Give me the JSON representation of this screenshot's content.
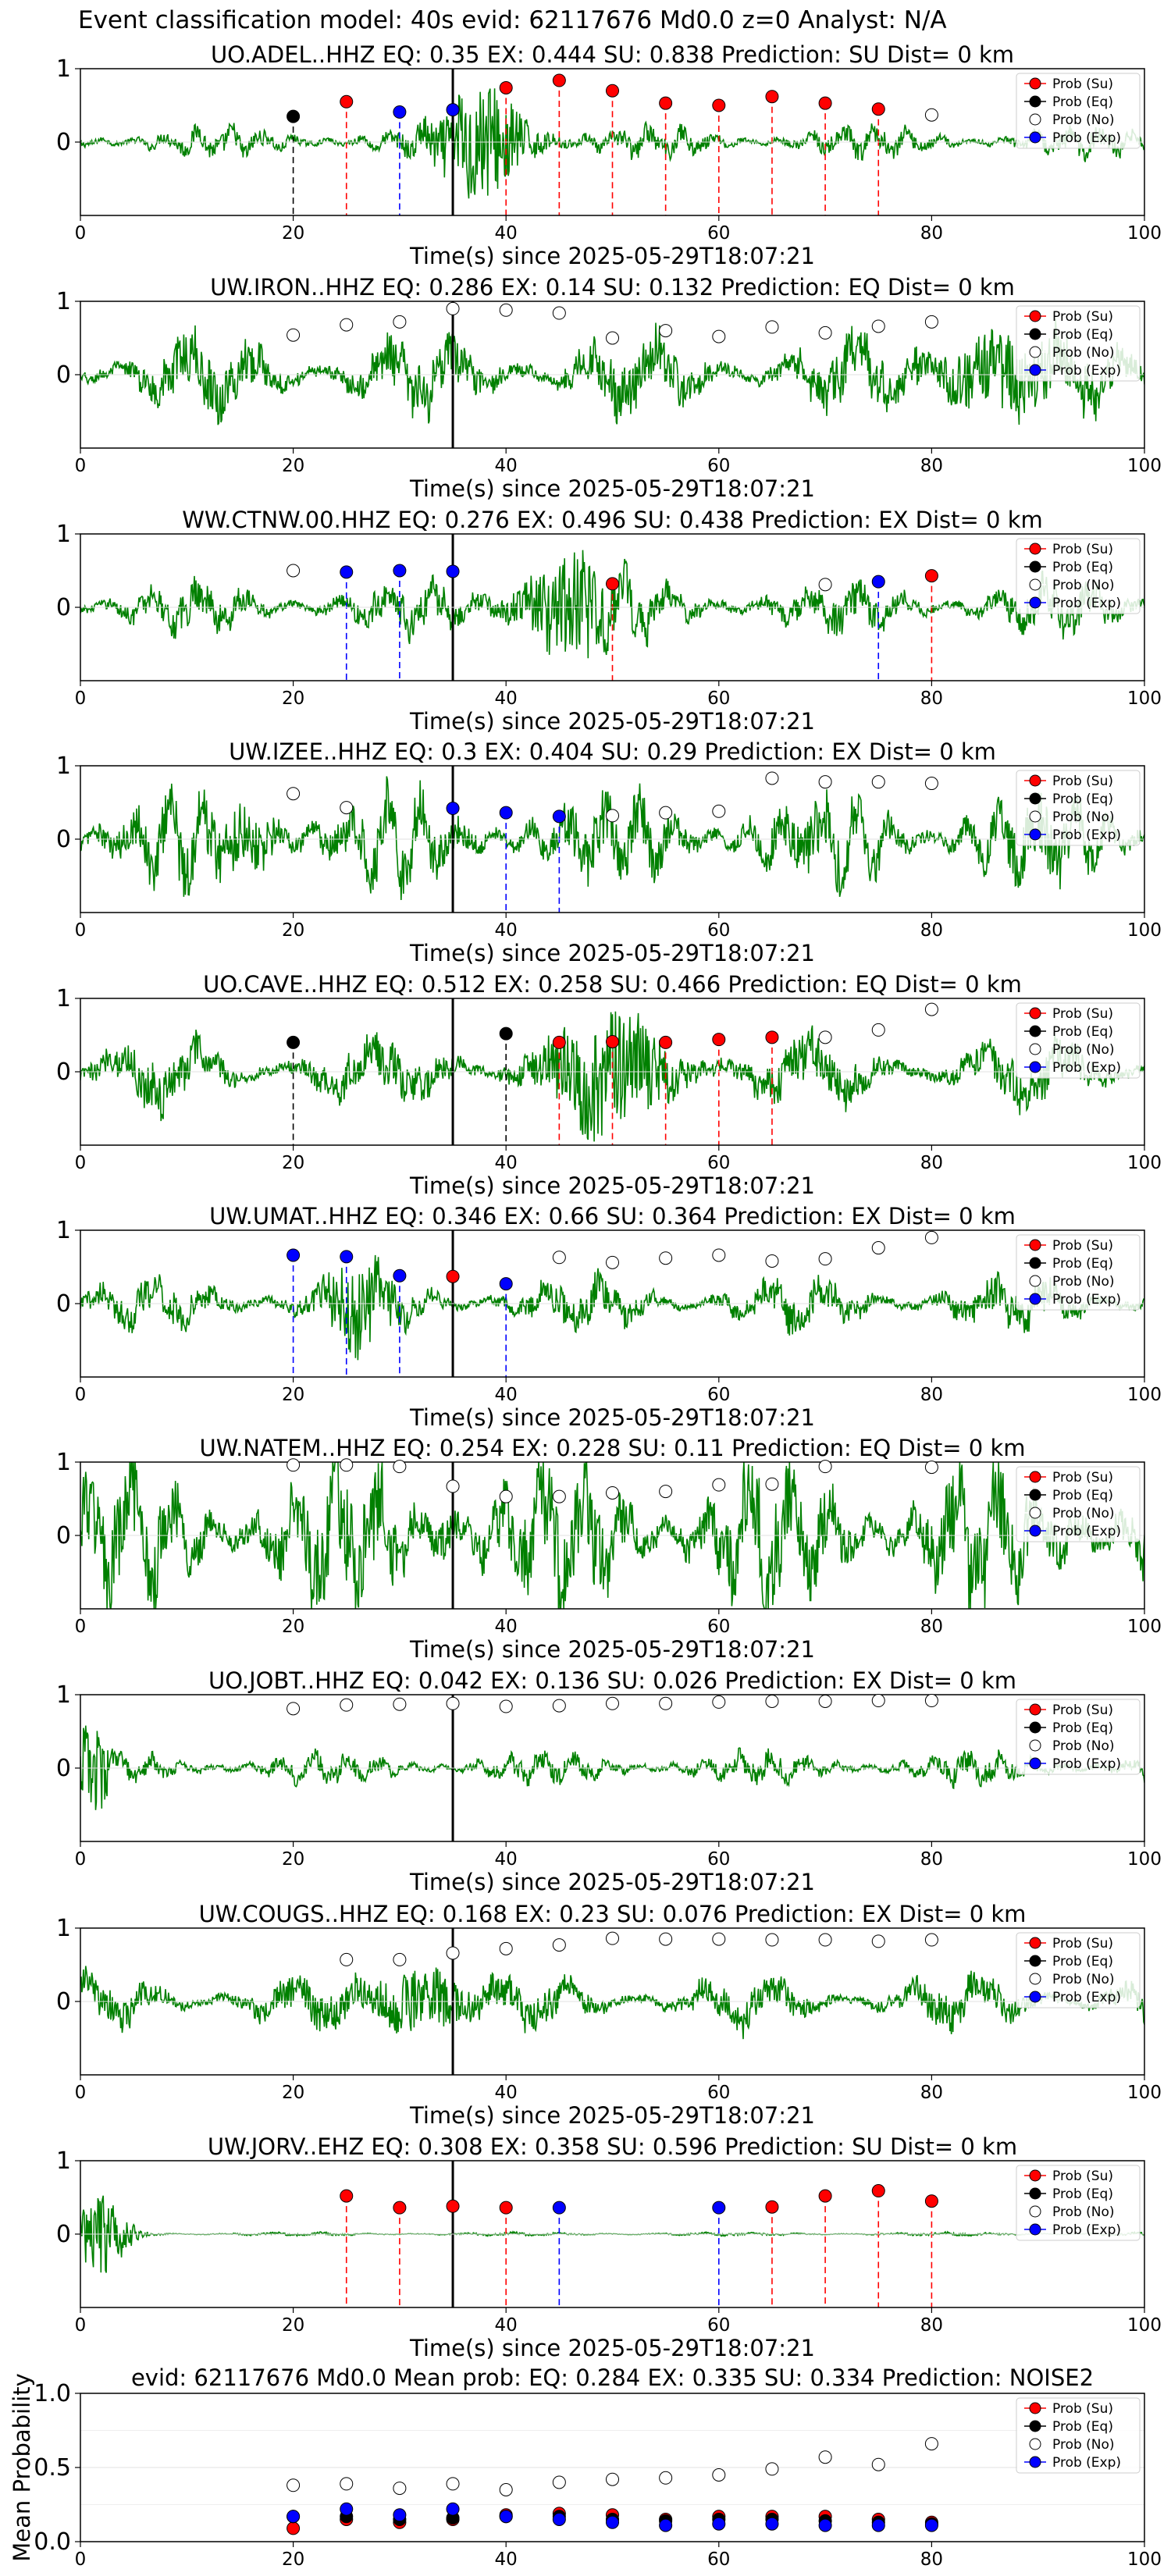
{
  "header": {
    "suptitle": "Event classification model: 40s evid: 62117676 Md0.0 z=0 Analyst: N/A"
  },
  "legend": [
    "Prob (Su)",
    "Prob (Eq)",
    "Prob (No)",
    "Prob (Exp)"
  ],
  "colors": {
    "waveform": "#008000",
    "su": "#ff0000",
    "eq": "#000000",
    "no": "#ffffff",
    "exp": "#0000ff",
    "reference_line": "#000000"
  },
  "chart_data": [
    {
      "type": "line",
      "title": "UO.ADEL..HHZ   EQ: 0.35  EX: 0.444  SU: 0.838   Prediction: SU    Dist= 0 km",
      "xlabel": "Time(s) since 2025-05-29T18:07:21",
      "xlim": [
        0,
        100
      ],
      "ylim": [
        -1,
        1
      ],
      "xticks": [
        0,
        20,
        40,
        60,
        80,
        100
      ],
      "yticks": [
        0,
        1
      ],
      "wave": {
        "amp": 0.18,
        "burst_center": 38,
        "burst_width": 4,
        "burst_amp": 0.9
      },
      "reference_x": 35,
      "points": [
        {
          "x": 20,
          "y": 0.35,
          "cls": "eq"
        },
        {
          "x": 25,
          "y": 0.55,
          "cls": "su"
        },
        {
          "x": 30,
          "y": 0.41,
          "cls": "exp"
        },
        {
          "x": 35,
          "y": 0.44,
          "cls": "exp"
        },
        {
          "x": 40,
          "y": 0.74,
          "cls": "su"
        },
        {
          "x": 45,
          "y": 0.84,
          "cls": "su"
        },
        {
          "x": 50,
          "y": 0.7,
          "cls": "su"
        },
        {
          "x": 55,
          "y": 0.53,
          "cls": "su"
        },
        {
          "x": 60,
          "y": 0.5,
          "cls": "su"
        },
        {
          "x": 65,
          "y": 0.62,
          "cls": "su"
        },
        {
          "x": 70,
          "y": 0.53,
          "cls": "su"
        },
        {
          "x": 75,
          "y": 0.45,
          "cls": "su"
        },
        {
          "x": 80,
          "y": 0.37,
          "cls": "no"
        }
      ]
    },
    {
      "type": "line",
      "title": "UW.IRON..HHZ   EQ: 0.286  EX: 0.14  SU: 0.132   Prediction: EQ    Dist= 0 km",
      "xlabel": "Time(s) since 2025-05-29T18:07:21",
      "xlim": [
        0,
        100
      ],
      "ylim": [
        -1,
        1
      ],
      "xticks": [
        0,
        20,
        40,
        60,
        80,
        100
      ],
      "yticks": [
        0,
        1
      ],
      "wave": {
        "amp": 0.45,
        "burst_center": 85,
        "burst_width": 5,
        "burst_amp": 0.5
      },
      "reference_x": 35,
      "points": [
        {
          "x": 20,
          "y": 0.54,
          "cls": "no"
        },
        {
          "x": 25,
          "y": 0.68,
          "cls": "no"
        },
        {
          "x": 30,
          "y": 0.72,
          "cls": "no"
        },
        {
          "x": 35,
          "y": 0.9,
          "cls": "no"
        },
        {
          "x": 40,
          "y": 0.88,
          "cls": "no"
        },
        {
          "x": 45,
          "y": 0.84,
          "cls": "no"
        },
        {
          "x": 50,
          "y": 0.5,
          "cls": "no"
        },
        {
          "x": 55,
          "y": 0.6,
          "cls": "no"
        },
        {
          "x": 60,
          "y": 0.52,
          "cls": "no"
        },
        {
          "x": 65,
          "y": 0.65,
          "cls": "no"
        },
        {
          "x": 70,
          "y": 0.57,
          "cls": "no"
        },
        {
          "x": 75,
          "y": 0.66,
          "cls": "no"
        },
        {
          "x": 80,
          "y": 0.72,
          "cls": "no"
        }
      ]
    },
    {
      "type": "line",
      "title": "WW.CTNW.00.HHZ   EQ: 0.276  EX: 0.496  SU: 0.438   Prediction: EX    Dist= 0 km",
      "xlabel": "Time(s) since 2025-05-29T18:07:21",
      "xlim": [
        0,
        100
      ],
      "ylim": [
        -1,
        1
      ],
      "xticks": [
        0,
        20,
        40,
        60,
        80,
        100
      ],
      "yticks": [
        0,
        1
      ],
      "wave": {
        "amp": 0.3,
        "burst_center": 46,
        "burst_width": 5,
        "burst_amp": 0.7
      },
      "reference_x": 35,
      "points": [
        {
          "x": 20,
          "y": 0.5,
          "cls": "no"
        },
        {
          "x": 25,
          "y": 0.48,
          "cls": "exp"
        },
        {
          "x": 30,
          "y": 0.5,
          "cls": "exp"
        },
        {
          "x": 35,
          "y": 0.49,
          "cls": "exp"
        },
        {
          "x": 50,
          "y": 0.32,
          "cls": "su"
        },
        {
          "x": 70,
          "y": 0.31,
          "cls": "no"
        },
        {
          "x": 75,
          "y": 0.35,
          "cls": "exp"
        },
        {
          "x": 80,
          "y": 0.43,
          "cls": "su"
        }
      ]
    },
    {
      "type": "line",
      "title": "UW.IZEE..HHZ   EQ: 0.3  EX: 0.404  SU: 0.29   Prediction: EX    Dist= 0 km",
      "xlabel": "Time(s) since 2025-05-29T18:07:21",
      "xlim": [
        0,
        100
      ],
      "ylim": [
        -1,
        1
      ],
      "xticks": [
        0,
        20,
        40,
        60,
        80,
        100
      ],
      "yticks": [
        0,
        1
      ],
      "wave": {
        "amp": 0.55,
        "burst_center": 16,
        "burst_width": 3,
        "burst_amp": 0.3
      },
      "reference_x": 35,
      "points": [
        {
          "x": 20,
          "y": 0.62,
          "cls": "no"
        },
        {
          "x": 25,
          "y": 0.43,
          "cls": "no"
        },
        {
          "x": 35,
          "y": 0.42,
          "cls": "exp"
        },
        {
          "x": 40,
          "y": 0.36,
          "cls": "exp"
        },
        {
          "x": 45,
          "y": 0.31,
          "cls": "exp"
        },
        {
          "x": 50,
          "y": 0.32,
          "cls": "no"
        },
        {
          "x": 55,
          "y": 0.36,
          "cls": "no"
        },
        {
          "x": 60,
          "y": 0.38,
          "cls": "no"
        },
        {
          "x": 65,
          "y": 0.83,
          "cls": "no"
        },
        {
          "x": 70,
          "y": 0.78,
          "cls": "no"
        },
        {
          "x": 75,
          "y": 0.78,
          "cls": "no"
        },
        {
          "x": 80,
          "y": 0.76,
          "cls": "no"
        }
      ]
    },
    {
      "type": "line",
      "title": "UO.CAVE..HHZ   EQ: 0.512  EX: 0.258  SU: 0.466   Prediction: EQ    Dist= 0 km",
      "xlabel": "Time(s) since 2025-05-29T18:07:21",
      "xlim": [
        0,
        100
      ],
      "ylim": [
        -1,
        1
      ],
      "xticks": [
        0,
        20,
        40,
        60,
        80,
        100
      ],
      "yticks": [
        0,
        1
      ],
      "wave": {
        "amp": 0.4,
        "burst_center": 50,
        "burst_width": 6,
        "burst_amp": 0.6
      },
      "reference_x": 35,
      "points": [
        {
          "x": 20,
          "y": 0.4,
          "cls": "eq"
        },
        {
          "x": 40,
          "y": 0.52,
          "cls": "eq"
        },
        {
          "x": 45,
          "y": 0.4,
          "cls": "su"
        },
        {
          "x": 50,
          "y": 0.41,
          "cls": "su"
        },
        {
          "x": 55,
          "y": 0.4,
          "cls": "su"
        },
        {
          "x": 60,
          "y": 0.44,
          "cls": "su"
        },
        {
          "x": 65,
          "y": 0.47,
          "cls": "su"
        },
        {
          "x": 70,
          "y": 0.47,
          "cls": "no"
        },
        {
          "x": 75,
          "y": 0.57,
          "cls": "no"
        },
        {
          "x": 80,
          "y": 0.85,
          "cls": "no"
        }
      ]
    },
    {
      "type": "line",
      "title": "UW.UMAT..HHZ   EQ: 0.346  EX: 0.66  SU: 0.364   Prediction: EX    Dist= 0 km",
      "xlabel": "Time(s) since 2025-05-29T18:07:21",
      "xlim": [
        0,
        100
      ],
      "ylim": [
        -1,
        1
      ],
      "xticks": [
        0,
        20,
        40,
        60,
        80,
        100
      ],
      "yticks": [
        0,
        1
      ],
      "wave": {
        "amp": 0.3,
        "burst_center": 26,
        "burst_width": 2.5,
        "burst_amp": 0.6
      },
      "reference_x": 35,
      "points": [
        {
          "x": 20,
          "y": 0.66,
          "cls": "exp"
        },
        {
          "x": 25,
          "y": 0.64,
          "cls": "exp"
        },
        {
          "x": 30,
          "y": 0.38,
          "cls": "exp"
        },
        {
          "x": 35,
          "y": 0.37,
          "cls": "su"
        },
        {
          "x": 40,
          "y": 0.27,
          "cls": "exp"
        },
        {
          "x": 45,
          "y": 0.63,
          "cls": "no"
        },
        {
          "x": 50,
          "y": 0.56,
          "cls": "no"
        },
        {
          "x": 55,
          "y": 0.62,
          "cls": "no"
        },
        {
          "x": 60,
          "y": 0.66,
          "cls": "no"
        },
        {
          "x": 65,
          "y": 0.58,
          "cls": "no"
        },
        {
          "x": 70,
          "y": 0.61,
          "cls": "no"
        },
        {
          "x": 75,
          "y": 0.76,
          "cls": "no"
        },
        {
          "x": 80,
          "y": 0.9,
          "cls": "no"
        }
      ]
    },
    {
      "type": "line",
      "title": "UW.NATEM..HHZ   EQ: 0.254  EX: 0.228  SU: 0.11   Prediction: EQ    Dist= 0 km",
      "xlabel": "Time(s) since 2025-05-29T18:07:21",
      "xlim": [
        0,
        100
      ],
      "ylim": [
        -1,
        1
      ],
      "xticks": [
        0,
        20,
        40,
        60,
        80,
        100
      ],
      "yticks": [
        0,
        1
      ],
      "wave": {
        "amp": 0.85,
        "burst_center": 35,
        "burst_width": 2,
        "burst_amp": 0.2
      },
      "reference_x": 35,
      "points": [
        {
          "x": 20,
          "y": 0.96,
          "cls": "no"
        },
        {
          "x": 25,
          "y": 0.96,
          "cls": "no"
        },
        {
          "x": 30,
          "y": 0.94,
          "cls": "no"
        },
        {
          "x": 35,
          "y": 0.67,
          "cls": "no"
        },
        {
          "x": 40,
          "y": 0.53,
          "cls": "no"
        },
        {
          "x": 45,
          "y": 0.53,
          "cls": "no"
        },
        {
          "x": 50,
          "y": 0.58,
          "cls": "no"
        },
        {
          "x": 55,
          "y": 0.6,
          "cls": "no"
        },
        {
          "x": 60,
          "y": 0.69,
          "cls": "no"
        },
        {
          "x": 65,
          "y": 0.7,
          "cls": "no"
        },
        {
          "x": 70,
          "y": 0.94,
          "cls": "no"
        },
        {
          "x": 80,
          "y": 0.93,
          "cls": "no"
        }
      ]
    },
    {
      "type": "line",
      "title": "UO.JOBT..HHZ   EQ: 0.042  EX: 0.136  SU: 0.026   Prediction: EX    Dist= 0 km",
      "xlabel": "Time(s) since 2025-05-29T18:07:21",
      "xlim": [
        0,
        100
      ],
      "ylim": [
        -1,
        1
      ],
      "xticks": [
        0,
        20,
        40,
        60,
        80,
        100
      ],
      "yticks": [
        0,
        1
      ],
      "wave": {
        "amp": 0.18,
        "burst_center": 1,
        "burst_width": 1.5,
        "burst_amp": 0.6
      },
      "reference_x": 35,
      "points": [
        {
          "x": 20,
          "y": 0.81,
          "cls": "no"
        },
        {
          "x": 25,
          "y": 0.86,
          "cls": "no"
        },
        {
          "x": 30,
          "y": 0.87,
          "cls": "no"
        },
        {
          "x": 35,
          "y": 0.88,
          "cls": "no"
        },
        {
          "x": 40,
          "y": 0.84,
          "cls": "no"
        },
        {
          "x": 45,
          "y": 0.85,
          "cls": "no"
        },
        {
          "x": 50,
          "y": 0.88,
          "cls": "no"
        },
        {
          "x": 55,
          "y": 0.88,
          "cls": "no"
        },
        {
          "x": 60,
          "y": 0.9,
          "cls": "no"
        },
        {
          "x": 65,
          "y": 0.91,
          "cls": "no"
        },
        {
          "x": 70,
          "y": 0.91,
          "cls": "no"
        },
        {
          "x": 75,
          "y": 0.92,
          "cls": "no"
        },
        {
          "x": 80,
          "y": 0.92,
          "cls": "no"
        }
      ]
    },
    {
      "type": "line",
      "title": "UW.COUGS..HHZ   EQ: 0.168  EX: 0.23  SU: 0.076   Prediction: EX    Dist= 0 km",
      "xlabel": "Time(s) since 2025-05-29T18:07:21",
      "xlim": [
        0,
        100
      ],
      "ylim": [
        -1,
        1
      ],
      "xticks": [
        0,
        20,
        40,
        60,
        80,
        100
      ],
      "yticks": [
        0,
        1
      ],
      "wave": {
        "amp": 0.3,
        "burst_center": 32,
        "burst_width": 4,
        "burst_amp": 0.5
      },
      "reference_x": 35,
      "points": [
        {
          "x": 25,
          "y": 0.57,
          "cls": "no"
        },
        {
          "x": 30,
          "y": 0.57,
          "cls": "no"
        },
        {
          "x": 35,
          "y": 0.66,
          "cls": "no"
        },
        {
          "x": 40,
          "y": 0.72,
          "cls": "no"
        },
        {
          "x": 45,
          "y": 0.77,
          "cls": "no"
        },
        {
          "x": 50,
          "y": 0.86,
          "cls": "no"
        },
        {
          "x": 55,
          "y": 0.85,
          "cls": "no"
        },
        {
          "x": 60,
          "y": 0.85,
          "cls": "no"
        },
        {
          "x": 65,
          "y": 0.84,
          "cls": "no"
        },
        {
          "x": 70,
          "y": 0.84,
          "cls": "no"
        },
        {
          "x": 75,
          "y": 0.82,
          "cls": "no"
        },
        {
          "x": 80,
          "y": 0.84,
          "cls": "no"
        }
      ]
    },
    {
      "type": "line",
      "title": "UW.JORV..EHZ   EQ: 0.308  EX: 0.358  SU: 0.596   Prediction: SU    Dist= 0 km",
      "xlabel": "Time(s) since 2025-05-29T18:07:21",
      "xlim": [
        0,
        100
      ],
      "ylim": [
        -1,
        1
      ],
      "xticks": [
        0,
        20,
        40,
        60,
        80,
        100
      ],
      "yticks": [
        0,
        1
      ],
      "wave": {
        "amp": 0.02,
        "burst_center": 2,
        "burst_width": 2.5,
        "burst_amp": 0.7
      },
      "reference_x": 35,
      "points": [
        {
          "x": 25,
          "y": 0.52,
          "cls": "su"
        },
        {
          "x": 30,
          "y": 0.36,
          "cls": "su"
        },
        {
          "x": 35,
          "y": 0.38,
          "cls": "su"
        },
        {
          "x": 40,
          "y": 0.36,
          "cls": "su"
        },
        {
          "x": 45,
          "y": 0.36,
          "cls": "exp"
        },
        {
          "x": 60,
          "y": 0.36,
          "cls": "exp"
        },
        {
          "x": 65,
          "y": 0.37,
          "cls": "su"
        },
        {
          "x": 70,
          "y": 0.52,
          "cls": "su"
        },
        {
          "x": 75,
          "y": 0.59,
          "cls": "su"
        },
        {
          "x": 80,
          "y": 0.45,
          "cls": "su"
        }
      ]
    },
    {
      "type": "scatter",
      "title": "evid: 62117676  Md0.0   Mean prob:   EQ: 0.284  EX: 0.335  SU: 0.334   Prediction: NOISE2",
      "ylabel": "Mean Probability",
      "xlabel": "",
      "xlim": [
        0,
        100
      ],
      "ylim": [
        0,
        1
      ],
      "xticks": [
        0,
        20,
        40,
        60,
        80,
        100
      ],
      "yticks": [
        0.0,
        0.5,
        1.0
      ],
      "ytick_labels": [
        "0.0",
        "0.5",
        "1.0"
      ],
      "series": [
        {
          "name": "Prob (Su)",
          "cls": "su",
          "x": [
            20,
            25,
            30,
            35,
            40,
            45,
            50,
            55,
            60,
            65,
            70,
            75,
            80
          ],
          "values": [
            0.09,
            0.15,
            0.13,
            0.15,
            0.18,
            0.19,
            0.18,
            0.15,
            0.17,
            0.17,
            0.17,
            0.15,
            0.13
          ]
        },
        {
          "name": "Prob (Eq)",
          "cls": "eq",
          "x": [
            20,
            25,
            30,
            35,
            40,
            45,
            50,
            55,
            60,
            65,
            70,
            75,
            80
          ],
          "values": [
            0.17,
            0.17,
            0.15,
            0.16,
            0.17,
            0.17,
            0.15,
            0.14,
            0.15,
            0.15,
            0.14,
            0.13,
            0.12
          ]
        },
        {
          "name": "Prob (No)",
          "cls": "no",
          "x": [
            20,
            25,
            30,
            35,
            40,
            45,
            50,
            55,
            60,
            65,
            70,
            75,
            80
          ],
          "values": [
            0.38,
            0.39,
            0.36,
            0.39,
            0.35,
            0.4,
            0.42,
            0.43,
            0.45,
            0.49,
            0.57,
            0.52,
            0.66
          ]
        },
        {
          "name": "Prob (Exp)",
          "cls": "exp",
          "x": [
            20,
            25,
            30,
            35,
            40,
            45,
            50,
            55,
            60,
            65,
            70,
            75,
            80
          ],
          "values": [
            0.17,
            0.22,
            0.18,
            0.22,
            0.17,
            0.15,
            0.13,
            0.11,
            0.12,
            0.12,
            0.11,
            0.11,
            0.11
          ]
        }
      ]
    }
  ]
}
